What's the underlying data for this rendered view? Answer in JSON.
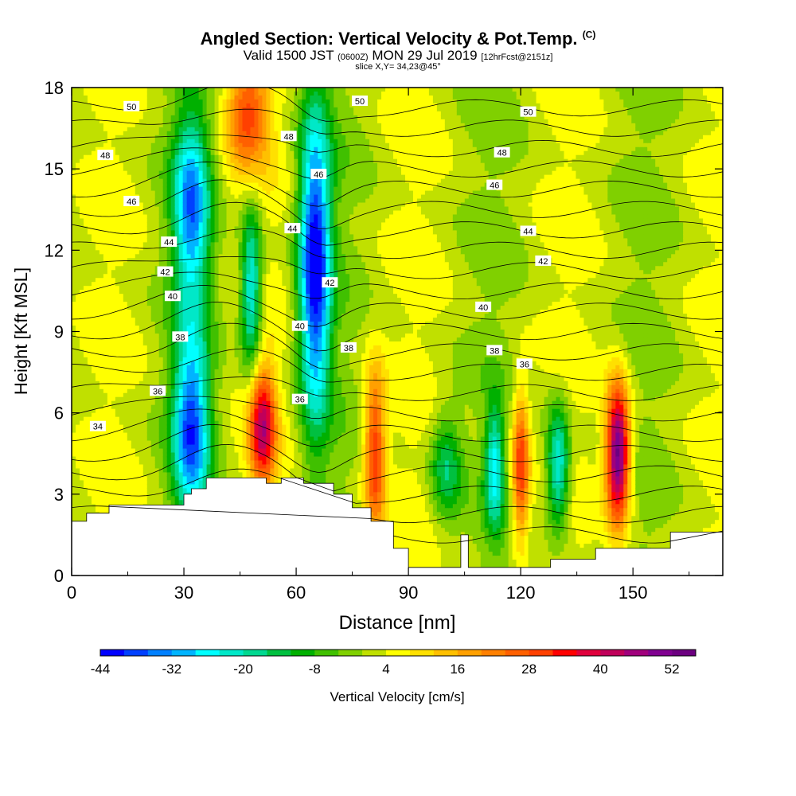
{
  "title": {
    "main": "Angled Section: Vertical Velocity & Pot.Temp.",
    "copyright": "(C)",
    "valid_prefix": "Valid 1500 JST",
    "valid_utc": "(0600Z)",
    "valid_date": "MON 29 Jul 2019",
    "fcst": "[12hrFcst@2151z]",
    "slice": "slice X,Y= 34,23@45°"
  },
  "chart_data": {
    "type": "heatmap",
    "xlabel": "Distance [nm]",
    "ylabel": "Height [Kft MSL]",
    "xlim": [
      0,
      174
    ],
    "ylim": [
      0,
      18
    ],
    "xticks": [
      0,
      30,
      60,
      90,
      120,
      150
    ],
    "yticks": [
      0,
      3,
      6,
      9,
      12,
      15,
      18
    ],
    "colorbar": {
      "label": "Vertical Velocity [cm/s]",
      "ticks": [
        -44,
        -32,
        -20,
        -8,
        4,
        16,
        28,
        40,
        52
      ],
      "levels": [
        -44,
        -40,
        -36,
        -32,
        -28,
        -24,
        -20,
        -16,
        -12,
        -8,
        -4,
        0,
        4,
        8,
        12,
        16,
        20,
        24,
        28,
        32,
        36,
        40,
        44,
        48,
        52,
        56
      ],
      "colors": [
        "#0000ff",
        "#0040ff",
        "#0080ff",
        "#00b4ff",
        "#00ffff",
        "#00e8c8",
        "#00d890",
        "#00c040",
        "#00b000",
        "#40c000",
        "#80d000",
        "#c0e000",
        "#ffff00",
        "#ffe000",
        "#ffc000",
        "#ffa000",
        "#ff8000",
        "#ff6000",
        "#ff4000",
        "#ff0000",
        "#e0003c",
        "#c0005a",
        "#a0007c",
        "#800090",
        "#6c0080"
      ]
    },
    "velocity_features": [
      {
        "x": 32,
        "y": 5.5,
        "value": -36
      },
      {
        "x": 32,
        "y": 13.5,
        "value": -32
      },
      {
        "x": 65,
        "y": 11.5,
        "value": -44
      },
      {
        "x": 48,
        "y": 10.5,
        "value": -28
      },
      {
        "x": 51,
        "y": 5.5,
        "value": 40
      },
      {
        "x": 81,
        "y": 4.5,
        "value": 32
      },
      {
        "x": 146,
        "y": 4.5,
        "value": 56
      },
      {
        "x": 120,
        "y": 4,
        "value": 32
      },
      {
        "x": 130,
        "y": 4,
        "value": -28
      },
      {
        "x": 113,
        "y": 4,
        "value": -24
      },
      {
        "x": 47,
        "y": 17,
        "value": 28
      },
      {
        "x": 100,
        "y": 4,
        "value": -16
      }
    ],
    "terrain": {
      "x": [
        0,
        4,
        10,
        30,
        32,
        36,
        42,
        52,
        56,
        58,
        62,
        70,
        75,
        80,
        86,
        90,
        102,
        104,
        106,
        128,
        140,
        155,
        160,
        174
      ],
      "y": [
        2.0,
        2.3,
        2.6,
        3.0,
        3.2,
        3.6,
        3.6,
        3.4,
        3.6,
        3.6,
        3.4,
        3.0,
        2.5,
        2.0,
        1.0,
        0.3,
        0.3,
        1.5,
        0.3,
        0.6,
        1.0,
        1.0,
        1.6,
        1.6
      ]
    },
    "theta_contours": [
      {
        "value": 34,
        "label_x": 7,
        "label_y": 5.5
      },
      {
        "value": 36,
        "label_x": 23,
        "label_y": 6.8
      },
      {
        "value": 38,
        "label_x": 29,
        "label_y": 8.8
      },
      {
        "value": 40,
        "label_x": 27,
        "label_y": 10.3
      },
      {
        "value": 42,
        "label_x": 25,
        "label_y": 11.2
      },
      {
        "value": 44,
        "label_x": 26,
        "label_y": 12.3
      },
      {
        "value": 46,
        "label_x": 16,
        "label_y": 13.8
      },
      {
        "value": 48,
        "label_x": 9,
        "label_y": 15.5
      },
      {
        "value": 50,
        "label_x": 16,
        "label_y": 17.3
      }
    ],
    "extra_contour_labels": [
      {
        "text": "36",
        "x": 61,
        "y": 6.5
      },
      {
        "text": "38",
        "x": 74,
        "y": 8.4
      },
      {
        "text": "40",
        "x": 61,
        "y": 9.2
      },
      {
        "text": "42",
        "x": 69,
        "y": 10.8
      },
      {
        "text": "44",
        "x": 59,
        "y": 12.8
      },
      {
        "text": "46",
        "x": 66,
        "y": 14.8
      },
      {
        "text": "48",
        "x": 58,
        "y": 16.2
      },
      {
        "text": "50",
        "x": 77,
        "y": 17.5
      },
      {
        "text": "36",
        "x": 121,
        "y": 7.8
      },
      {
        "text": "38",
        "x": 113,
        "y": 8.3
      },
      {
        "text": "40",
        "x": 110,
        "y": 9.9
      },
      {
        "text": "42",
        "x": 126,
        "y": 11.6
      },
      {
        "text": "44",
        "x": 122,
        "y": 12.7
      },
      {
        "text": "46",
        "x": 113,
        "y": 14.4
      },
      {
        "text": "48",
        "x": 115,
        "y": 15.6
      },
      {
        "text": "50",
        "x": 122,
        "y": 17.1
      }
    ]
  }
}
